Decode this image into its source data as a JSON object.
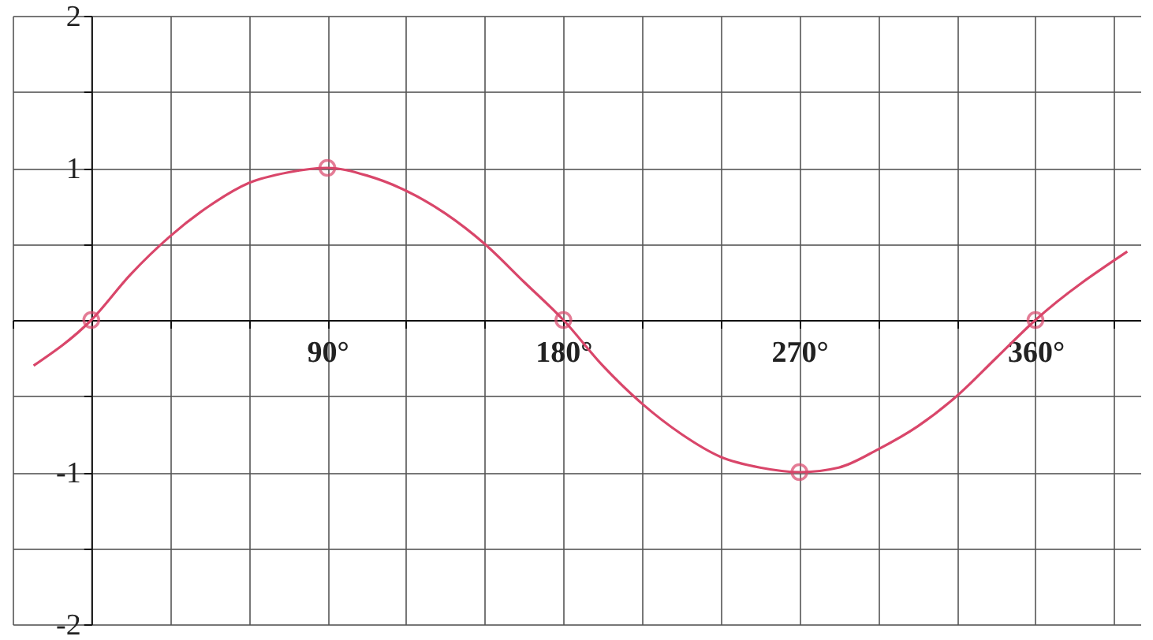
{
  "chart_data": {
    "type": "line",
    "xlim": [
      -30,
      400
    ],
    "ylim": [
      -2,
      2
    ],
    "grid": true,
    "line_style": "solid",
    "xticks": [
      {
        "value": -30,
        "label": null
      },
      {
        "value": 0,
        "label": null
      },
      {
        "value": 30,
        "label": null
      },
      {
        "value": 60,
        "label": null
      },
      {
        "value": 90,
        "label": "90°"
      },
      {
        "value": 120,
        "label": null
      },
      {
        "value": 150,
        "label": null
      },
      {
        "value": 180,
        "label": "180°"
      },
      {
        "value": 210,
        "label": null
      },
      {
        "value": 240,
        "label": null
      },
      {
        "value": 270,
        "label": "270°"
      },
      {
        "value": 300,
        "label": null
      },
      {
        "value": 330,
        "label": null
      },
      {
        "value": 360,
        "label": "360°"
      },
      {
        "value": 390,
        "label": null
      }
    ],
    "yticks": [
      -2,
      {
        "value": -1.5,
        "label": null
      },
      -1,
      {
        "value": -0.5,
        "label": null
      },
      {
        "value": 0,
        "label": null
      },
      {
        "value": 0.5,
        "label": null
      },
      1,
      {
        "value": 1.5,
        "label": null
      },
      2
    ],
    "series": [
      {
        "color": "#d9466a",
        "marker": "none",
        "x": [
          -22,
          0,
          15,
          30,
          45,
          60,
          75,
          90,
          105,
          120,
          135,
          150,
          165,
          180,
          195,
          210,
          225,
          240,
          255,
          270,
          285,
          300,
          315,
          330,
          345,
          360,
          395
        ],
        "values": [
          -0.3,
          0,
          0.3,
          0.55,
          0.75,
          0.9,
          0.97,
          1,
          0.95,
          0.85,
          0.7,
          0.5,
          0.25,
          0,
          -0.3,
          -0.55,
          -0.75,
          -0.9,
          -0.97,
          -1,
          -0.97,
          -0.85,
          -0.7,
          -0.5,
          -0.25,
          0,
          0.45
        ]
      },
      {
        "type": "scatter",
        "color": "#d9466a",
        "marker": "circle",
        "x": [
          0,
          90,
          180,
          270,
          360
        ],
        "values": [
          0,
          1,
          0,
          -1,
          0
        ]
      }
    ]
  }
}
